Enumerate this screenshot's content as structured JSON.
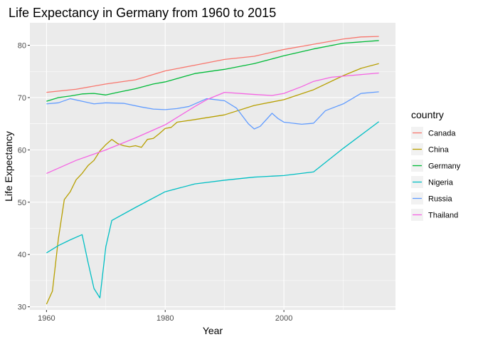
{
  "chart_data": {
    "type": "line",
    "title": "Life Expectancy in Germany from 1960 to 2015",
    "xlabel": "Year",
    "ylabel": "Life Expectancy",
    "xlim": [
      1957.2,
      2018.8
    ],
    "ylim": [
      29.4,
      84.3
    ],
    "x_ticks": [
      1960,
      1980,
      2000
    ],
    "y_ticks": [
      30,
      40,
      50,
      60,
      70,
      80
    ],
    "grid": true,
    "legend_title": "country",
    "legend_position": "right",
    "series": [
      {
        "name": "Canada",
        "color": "#F8766D",
        "x": [
          1960,
          1965,
          1970,
          1975,
          1980,
          1985,
          1990,
          1995,
          2000,
          2005,
          2010,
          2013,
          2016
        ],
        "y": [
          71.0,
          71.6,
          72.6,
          73.4,
          75.1,
          76.2,
          77.3,
          77.9,
          79.2,
          80.2,
          81.2,
          81.6,
          81.7
        ]
      },
      {
        "name": "China",
        "color": "#B79F00",
        "x": [
          1960,
          1961,
          1962,
          1963,
          1964,
          1965,
          1966,
          1967,
          1968,
          1969,
          1970,
          1971,
          1972,
          1973,
          1974,
          1975,
          1976,
          1977,
          1978,
          1979,
          1980,
          1981,
          1982,
          1985,
          1990,
          1995,
          2000,
          2005,
          2010,
          2013,
          2016
        ],
        "y": [
          30.5,
          33.0,
          43.0,
          50.5,
          52.0,
          54.3,
          55.5,
          57.0,
          58.0,
          59.8,
          61.0,
          62.0,
          61.2,
          60.8,
          60.6,
          60.8,
          60.5,
          62.0,
          62.2,
          63.1,
          64.1,
          64.3,
          65.3,
          65.8,
          66.7,
          68.5,
          69.6,
          71.5,
          74.2,
          75.6,
          76.5
        ]
      },
      {
        "name": "Germany",
        "color": "#00BA38",
        "x": [
          1960,
          1962,
          1964,
          1966,
          1968,
          1970,
          1972,
          1975,
          1978,
          1980,
          1985,
          1990,
          1995,
          2000,
          2005,
          2010,
          2016
        ],
        "y": [
          69.3,
          70.0,
          70.3,
          70.7,
          70.8,
          70.5,
          71.0,
          71.7,
          72.6,
          73.0,
          74.6,
          75.4,
          76.5,
          78.0,
          79.3,
          80.4,
          80.9
        ]
      },
      {
        "name": "Nigeria",
        "color": "#00BFC4",
        "x": [
          1960,
          1962,
          1964,
          1966,
          1967,
          1968,
          1969,
          1970,
          1971,
          1975,
          1980,
          1985,
          1990,
          1995,
          2000,
          2005,
          2010,
          2016
        ],
        "y": [
          40.3,
          41.7,
          42.8,
          43.8,
          38.5,
          33.5,
          31.7,
          41.5,
          46.5,
          49.0,
          52.0,
          53.5,
          54.2,
          54.8,
          55.1,
          55.8,
          60.3,
          65.4
        ]
      },
      {
        "name": "Russia",
        "color": "#619CFF",
        "x": [
          1960,
          1962,
          1964,
          1966,
          1968,
          1970,
          1973,
          1976,
          1978,
          1980,
          1982,
          1984,
          1987,
          1990,
          1992,
          1994,
          1995,
          1996,
          1998,
          1999,
          2000,
          2003,
          2005,
          2007,
          2010,
          2013,
          2016
        ],
        "y": [
          68.8,
          69.0,
          69.8,
          69.3,
          68.8,
          69.0,
          68.9,
          68.2,
          67.8,
          67.7,
          67.9,
          68.3,
          69.8,
          69.4,
          68.0,
          65.0,
          64.0,
          64.5,
          67.0,
          66.0,
          65.3,
          64.9,
          65.1,
          67.5,
          68.8,
          70.8,
          71.1
        ]
      },
      {
        "name": "Thailand",
        "color": "#F564E3",
        "x": [
          1960,
          1965,
          1970,
          1975,
          1980,
          1985,
          1987,
          1990,
          1995,
          1998,
          2000,
          2003,
          2005,
          2008,
          2010,
          2016
        ],
        "y": [
          55.5,
          58.0,
          60.0,
          62.3,
          64.8,
          68.3,
          69.6,
          71.0,
          70.6,
          70.4,
          70.8,
          72.1,
          73.1,
          73.9,
          74.1,
          74.7
        ]
      }
    ]
  }
}
